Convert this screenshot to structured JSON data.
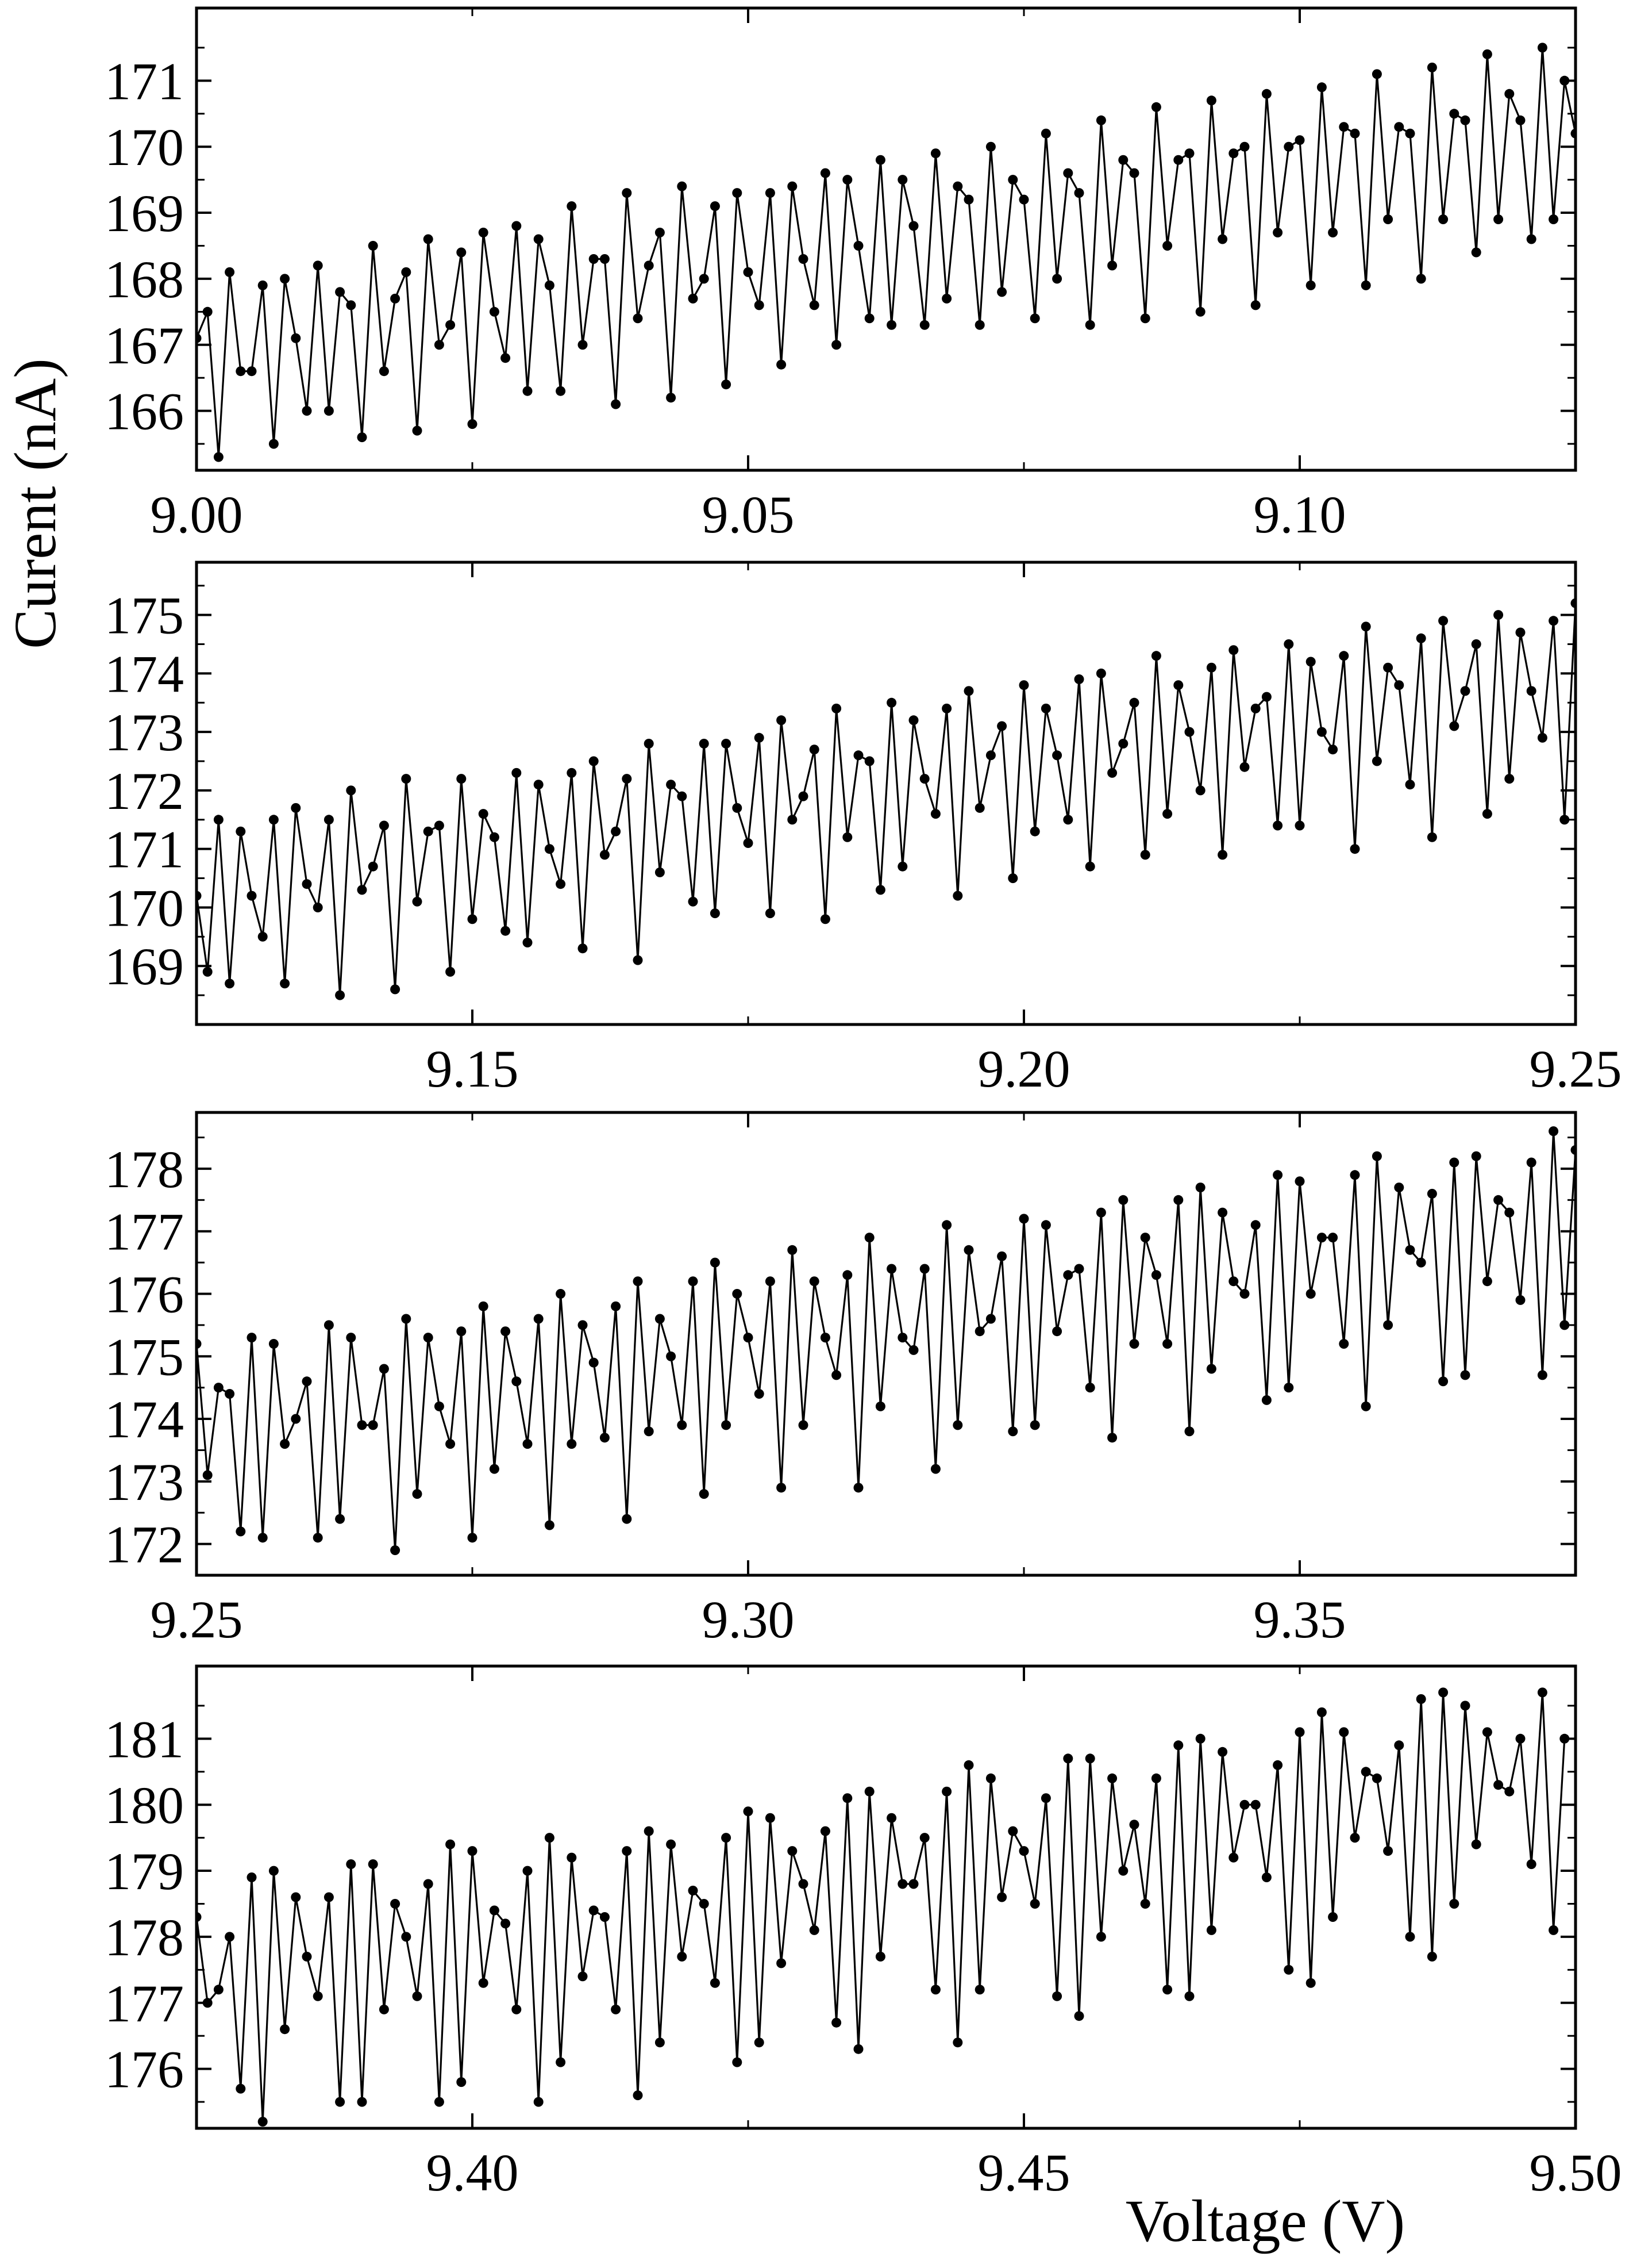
{
  "figure": {
    "ylabel": "Curent (nA)",
    "xlabel": "Voltage (V)"
  },
  "chart_data": [
    {
      "type": "line",
      "marker": "circle",
      "color": "#000000",
      "xlim": [
        9.0,
        9.125
      ],
      "ylim": [
        165.1,
        172.1
      ],
      "xticks": [
        9.0,
        9.05,
        9.1
      ],
      "xtick_labels": [
        "9.00",
        "9.05",
        "9.10"
      ],
      "yticks": [
        166,
        167,
        168,
        169,
        170,
        171
      ],
      "ytick_labels": [
        "166",
        "167",
        "168",
        "169",
        "170",
        "171"
      ],
      "x_start": 9.0,
      "x_step": 0.001,
      "y": [
        167.1,
        167.5,
        165.3,
        168.1,
        166.6,
        166.6,
        167.9,
        165.5,
        168.0,
        167.1,
        166.0,
        168.2,
        166.0,
        167.8,
        167.6,
        165.6,
        168.5,
        166.6,
        167.7,
        168.1,
        165.7,
        168.6,
        167.0,
        167.3,
        168.4,
        165.8,
        168.7,
        167.5,
        166.8,
        168.8,
        166.3,
        168.6,
        167.9,
        166.3,
        169.1,
        167.0,
        168.3,
        168.3,
        166.1,
        169.3,
        167.4,
        168.2,
        168.7,
        166.2,
        169.4,
        167.7,
        168.0,
        169.1,
        166.4,
        169.3,
        168.1,
        167.6,
        169.3,
        166.7,
        169.4,
        168.3,
        167.6,
        169.6,
        167.0,
        169.5,
        168.5,
        167.4,
        169.8,
        167.3,
        169.5,
        168.8,
        167.3,
        169.9,
        167.7,
        169.4,
        169.2,
        167.3,
        170.0,
        167.8,
        169.5,
        169.2,
        167.4,
        170.2,
        168.0,
        169.6,
        169.3,
        167.3,
        170.4,
        168.2,
        169.8,
        169.6,
        167.4,
        170.6,
        168.5,
        169.8,
        169.9,
        167.5,
        170.7,
        168.6,
        169.9,
        170.0,
        167.6,
        170.8,
        168.7,
        170.0,
        170.1,
        167.9,
        170.9,
        168.7,
        170.3,
        170.2,
        167.9,
        171.1,
        168.9,
        170.3,
        170.2,
        168.0,
        171.2,
        168.9,
        170.5,
        170.4,
        168.4,
        171.4,
        168.9,
        170.8,
        170.4,
        168.6,
        171.5,
        168.9,
        171.0,
        170.2
      ]
    },
    {
      "type": "line",
      "marker": "circle",
      "color": "#000000",
      "xlim": [
        9.125,
        9.25
      ],
      "ylim": [
        168.0,
        175.9
      ],
      "xticks": [
        9.15,
        9.2,
        9.25
      ],
      "xtick_labels": [
        "9.15",
        "9.20",
        "9.25"
      ],
      "yticks": [
        169,
        170,
        171,
        172,
        173,
        174,
        175
      ],
      "ytick_labels": [
        "169",
        "170",
        "171",
        "172",
        "173",
        "174",
        "175"
      ],
      "x_start": 9.125,
      "x_step": 0.001,
      "y": [
        170.2,
        168.9,
        171.5,
        168.7,
        171.3,
        170.2,
        169.5,
        171.5,
        168.7,
        171.7,
        170.4,
        170.0,
        171.5,
        168.5,
        172.0,
        170.3,
        170.7,
        171.4,
        168.6,
        172.2,
        170.1,
        171.3,
        171.4,
        168.9,
        172.2,
        169.8,
        171.6,
        171.2,
        169.6,
        172.3,
        169.4,
        172.1,
        171.0,
        170.4,
        172.3,
        169.3,
        172.5,
        170.9,
        171.3,
        172.2,
        169.1,
        172.8,
        170.6,
        172.1,
        171.9,
        170.1,
        172.8,
        169.9,
        172.8,
        171.7,
        171.1,
        172.9,
        169.9,
        173.2,
        171.5,
        171.9,
        172.7,
        169.8,
        173.4,
        171.2,
        172.6,
        172.5,
        170.3,
        173.5,
        170.7,
        173.2,
        172.2,
        171.6,
        173.4,
        170.2,
        173.7,
        171.7,
        172.6,
        173.1,
        170.5,
        173.8,
        171.3,
        173.4,
        172.6,
        171.5,
        173.9,
        170.7,
        174.0,
        172.3,
        172.8,
        173.5,
        170.9,
        174.3,
        171.6,
        173.8,
        173.0,
        172.0,
        174.1,
        170.9,
        174.4,
        172.4,
        173.4,
        173.6,
        171.4,
        174.5,
        171.4,
        174.2,
        173.0,
        172.7,
        174.3,
        171.0,
        174.8,
        172.5,
        174.1,
        173.8,
        172.1,
        174.6,
        171.2,
        174.9,
        173.1,
        173.7,
        174.5,
        171.6,
        175.0,
        172.2,
        174.7,
        173.7,
        172.9,
        174.9,
        171.5,
        175.2
      ]
    },
    {
      "type": "line",
      "marker": "circle",
      "color": "#000000",
      "xlim": [
        9.25,
        9.375
      ],
      "ylim": [
        171.5,
        178.9
      ],
      "xticks": [
        9.25,
        9.3,
        9.35
      ],
      "xtick_labels": [
        "9.25",
        "9.30",
        "9.35"
      ],
      "yticks": [
        172,
        173,
        174,
        175,
        176,
        177,
        178
      ],
      "ytick_labels": [
        "172",
        "173",
        "174",
        "175",
        "176",
        "177",
        "178"
      ],
      "x_start": 9.25,
      "x_step": 0.001,
      "y": [
        175.2,
        173.1,
        174.5,
        174.4,
        172.2,
        175.3,
        172.1,
        175.2,
        173.6,
        174.0,
        174.6,
        172.1,
        175.5,
        172.4,
        175.3,
        173.9,
        173.9,
        174.8,
        171.9,
        175.6,
        172.8,
        175.3,
        174.2,
        173.6,
        175.4,
        172.1,
        175.8,
        173.2,
        175.4,
        174.6,
        173.6,
        175.6,
        172.3,
        176.0,
        173.6,
        175.5,
        174.9,
        173.7,
        175.8,
        172.4,
        176.2,
        173.8,
        175.6,
        175.0,
        173.9,
        176.2,
        172.8,
        176.5,
        173.9,
        176.0,
        175.3,
        174.4,
        176.2,
        172.9,
        176.7,
        173.9,
        176.2,
        175.3,
        174.7,
        176.3,
        172.9,
        176.9,
        174.2,
        176.4,
        175.3,
        175.1,
        176.4,
        173.2,
        177.1,
        173.9,
        176.7,
        175.4,
        175.6,
        176.6,
        173.8,
        177.2,
        173.9,
        177.1,
        175.4,
        176.3,
        176.4,
        174.5,
        177.3,
        173.7,
        177.5,
        175.2,
        176.9,
        176.3,
        175.2,
        177.5,
        173.8,
        177.7,
        174.8,
        177.3,
        176.2,
        176.0,
        177.1,
        174.3,
        177.9,
        174.5,
        177.8,
        176.0,
        176.9,
        176.9,
        175.2,
        177.9,
        174.2,
        178.2,
        175.5,
        177.7,
        176.7,
        176.5,
        177.6,
        174.6,
        178.1,
        174.7,
        178.2,
        176.2,
        177.5,
        177.3,
        175.9,
        178.1,
        174.7,
        178.6,
        175.5,
        178.3
      ]
    },
    {
      "type": "line",
      "marker": "circle",
      "color": "#000000",
      "xlim": [
        9.375,
        9.5
      ],
      "ylim": [
        175.1,
        182.1
      ],
      "xticks": [
        9.4,
        9.45,
        9.5
      ],
      "xtick_labels": [
        "9.40",
        "9.45",
        "9.50"
      ],
      "yticks": [
        176,
        177,
        178,
        179,
        180,
        181
      ],
      "ytick_labels": [
        "176",
        "177",
        "178",
        "179",
        "180",
        "181"
      ],
      "x_start": 9.375,
      "x_step": 0.001,
      "y": [
        178.3,
        177.0,
        177.2,
        178.0,
        175.7,
        178.9,
        175.2,
        179.0,
        176.6,
        178.6,
        177.7,
        177.1,
        178.6,
        175.5,
        179.1,
        175.5,
        179.1,
        176.9,
        178.5,
        178.0,
        177.1,
        178.8,
        175.5,
        179.4,
        175.8,
        179.3,
        177.3,
        178.4,
        178.2,
        176.9,
        179.0,
        175.5,
        179.5,
        176.1,
        179.2,
        177.4,
        178.4,
        178.3,
        176.9,
        179.3,
        175.6,
        179.6,
        176.4,
        179.4,
        177.7,
        178.7,
        178.5,
        177.3,
        179.5,
        176.1,
        179.9,
        176.4,
        179.8,
        177.6,
        179.3,
        178.8,
        178.1,
        179.6,
        176.7,
        180.1,
        176.3,
        180.2,
        177.7,
        179.8,
        178.8,
        178.8,
        179.5,
        177.2,
        180.2,
        176.4,
        180.6,
        177.2,
        180.4,
        178.6,
        179.6,
        179.3,
        178.5,
        180.1,
        177.1,
        180.7,
        176.8,
        180.7,
        178.0,
        180.4,
        179.0,
        179.7,
        178.5,
        180.4,
        177.2,
        180.9,
        177.1,
        181.0,
        178.1,
        180.8,
        179.2,
        180.0,
        180.0,
        178.9,
        180.6,
        177.5,
        181.1,
        177.3,
        181.4,
        178.3,
        181.1,
        179.5,
        180.5,
        180.4,
        179.3,
        180.9,
        178.0,
        181.6,
        177.7,
        181.7,
        178.5,
        181.5,
        179.4,
        181.1,
        180.3,
        180.2,
        181.0,
        179.1,
        181.7,
        178.1,
        181.0
      ]
    }
  ]
}
